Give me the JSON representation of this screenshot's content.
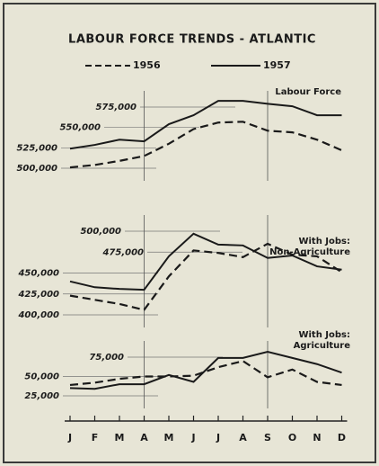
{
  "title": "LABOUR FORCE TRENDS - ATLANTIC",
  "chart_data": [
    {
      "type": "line",
      "title": [
        "Labour Force"
      ],
      "ylim": [
        500000,
        575000
      ],
      "yticks": [
        {
          "value": 500000,
          "label": "500,000"
        },
        {
          "value": 525000,
          "label": "525,000"
        },
        {
          "value": 550000,
          "label": "550,000"
        },
        {
          "value": 575000,
          "label": "575,000"
        }
      ],
      "series": [
        {
          "name": "1956",
          "color": "#1a1a1a",
          "dash": true,
          "values": [
            501000,
            504000,
            509000,
            515000,
            530000,
            548000,
            556000,
            557000,
            546000,
            544000,
            535000,
            522000
          ]
        },
        {
          "name": "1957",
          "color": "#1a1a1a",
          "dash": false,
          "values": [
            524000,
            528600,
            535000,
            533000,
            554000,
            565000,
            582600,
            582600,
            579000,
            576000,
            565000,
            565000
          ]
        }
      ]
    },
    {
      "type": "line",
      "title": [
        "With Jobs:",
        "Non-Agriculture"
      ],
      "ylim": [
        400000,
        500000
      ],
      "yticks": [
        {
          "value": 400000,
          "label": "400,000"
        },
        {
          "value": 425000,
          "label": "425,000"
        },
        {
          "value": 450000,
          "label": "450,000"
        },
        {
          "value": 475000,
          "label": "475,000"
        },
        {
          "value": 500000,
          "label": "500,000"
        }
      ],
      "series": [
        {
          "name": "1956",
          "color": "#1a1a1a",
          "dash": true,
          "values": [
            423000,
            418000,
            413000,
            406000,
            446000,
            477000,
            474000,
            469000,
            485000,
            472000,
            470000,
            451000
          ]
        },
        {
          "name": "1957",
          "color": "#1a1a1a",
          "dash": false,
          "values": [
            440000,
            433000,
            431000,
            430000,
            470000,
            497000,
            484000,
            483000,
            468000,
            471000,
            458000,
            454000
          ]
        }
      ]
    },
    {
      "type": "line",
      "title": [
        "With Jobs:",
        "Agriculture"
      ],
      "categories": [
        "J",
        "F",
        "M",
        "A",
        "M",
        "J",
        "J",
        "A",
        "S",
        "O",
        "N",
        "D"
      ],
      "ylim": [
        25000,
        75000
      ],
      "yticks": [
        {
          "value": 25000,
          "label": "25,000"
        },
        {
          "value": 50000,
          "label": "50,000"
        },
        {
          "value": 75000,
          "label": "75,000"
        }
      ],
      "series": [
        {
          "name": "1956",
          "color": "#1a1a1a",
          "dash": true,
          "values": [
            39000,
            42000,
            47000,
            50000,
            50000,
            51000,
            62000,
            70000,
            49000,
            59000,
            43000,
            39000
          ]
        },
        {
          "name": "1957",
          "color": "#1a1a1a",
          "dash": false,
          "values": [
            35000,
            34000,
            40000,
            40000,
            52000,
            43000,
            74000,
            74000,
            82000,
            74000,
            66000,
            55000
          ]
        }
      ]
    }
  ]
}
